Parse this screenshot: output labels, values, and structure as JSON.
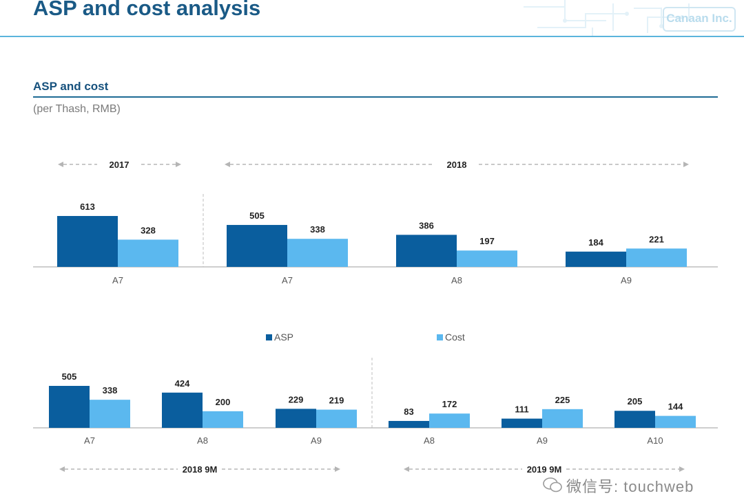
{
  "title": "ASP and cost analysis",
  "logo_text": "Canaan Inc.",
  "section": {
    "title": "ASP and cost",
    "units": "(per Thash, RMB)"
  },
  "colors": {
    "asp": "#0a5e9e",
    "cost": "#5bb8ef",
    "accent": "#1a5a86"
  },
  "legend": {
    "asp": "ASP",
    "cost": "Cost"
  },
  "watermark": "微信号: touchweb",
  "chart_data": [
    {
      "type": "bar",
      "title": "ASP and cost (per Thash, RMB) — 2017 vs 2018",
      "series_names": [
        "ASP",
        "Cost"
      ],
      "periods": [
        {
          "label": "2017",
          "categories": [
            "A7"
          ],
          "asp": [
            613
          ],
          "cost": [
            328
          ]
        },
        {
          "label": "2018",
          "categories": [
            "A7",
            "A8",
            "A9"
          ],
          "asp": [
            505,
            386,
            184
          ],
          "cost": [
            338,
            197,
            221
          ]
        }
      ],
      "ylim": [
        0,
        613
      ]
    },
    {
      "type": "bar",
      "title": "ASP and cost (per Thash, RMB) — 2018 9M vs 2019 9M",
      "series_names": [
        "ASP",
        "Cost"
      ],
      "periods": [
        {
          "label": "2018 9M",
          "categories": [
            "A7",
            "A8",
            "A9"
          ],
          "asp": [
            505,
            424,
            229
          ],
          "cost": [
            338,
            200,
            219
          ]
        },
        {
          "label": "2019 9M",
          "categories": [
            "A8",
            "A9",
            "A10"
          ],
          "asp": [
            83,
            111,
            205
          ],
          "cost": [
            172,
            225,
            144
          ]
        }
      ],
      "ylim": [
        0,
        505
      ]
    }
  ]
}
